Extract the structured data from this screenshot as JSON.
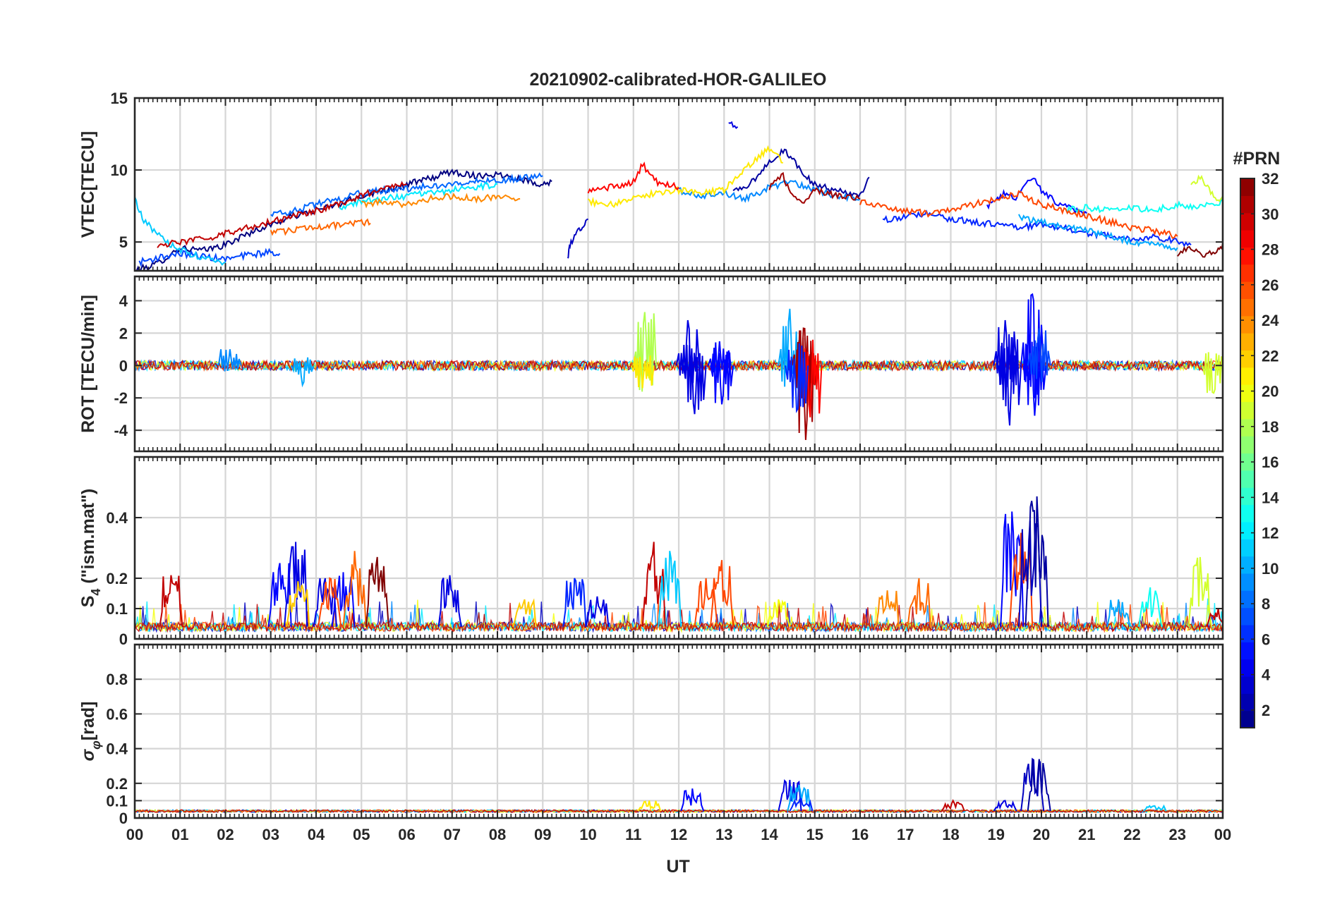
{
  "title": "20210902-calibrated-HOR-GALILEO",
  "xlabel": "UT",
  "x_ticks": [
    "00",
    "01",
    "02",
    "03",
    "04",
    "05",
    "06",
    "07",
    "08",
    "09",
    "10",
    "11",
    "12",
    "13",
    "14",
    "15",
    "16",
    "17",
    "18",
    "19",
    "20",
    "21",
    "22",
    "23",
    "00"
  ],
  "colorbar": {
    "title": "#PRN",
    "ticks": [
      "2",
      "4",
      "6",
      "8",
      "10",
      "12",
      "14",
      "16",
      "18",
      "20",
      "22",
      "24",
      "26",
      "28",
      "30",
      "32"
    ],
    "range": [
      1,
      32
    ],
    "colormap": "jet",
    "levels": 32
  },
  "chart_data": [
    {
      "type": "line",
      "panel": "vtec",
      "ylabel": "VTEC[TECU]",
      "ylim": [
        3,
        15
      ],
      "yticks": [
        "5",
        "10",
        "15"
      ],
      "xlim": [
        0,
        24
      ],
      "grid": true,
      "series": [
        {
          "prn": 1,
          "x": [
            0.0,
            0.5,
            1.0,
            1.5,
            2.0,
            2.5,
            3.0,
            3.5,
            4.0,
            4.5,
            5.0,
            5.5,
            6.0,
            6.5,
            7.0,
            7.5,
            8.0,
            8.5,
            9.0,
            9.2
          ],
          "y": [
            3.0,
            3.5,
            4.6,
            4.4,
            4.8,
            5.6,
            6.2,
            6.8,
            7.2,
            7.6,
            8.2,
            8.6,
            9.0,
            9.4,
            9.9,
            9.6,
            9.7,
            9.4,
            9.0,
            9.2
          ]
        },
        {
          "prn": 2,
          "x": [
            13.2,
            13.5,
            13.8,
            14.0,
            14.3,
            14.5,
            14.8,
            15.0,
            15.3,
            15.6,
            16.0,
            16.2
          ],
          "y": [
            8.5,
            8.8,
            9.8,
            10.5,
            11.4,
            10.8,
            9.6,
            9.0,
            8.7,
            8.5,
            8.3,
            9.5
          ]
        },
        {
          "prn": 3,
          "x": [
            9.55,
            9.6,
            9.7,
            9.8,
            9.9,
            10.0
          ],
          "y": [
            3.8,
            4.8,
            5.4,
            5.8,
            6.2,
            6.6
          ]
        },
        {
          "prn": 4,
          "x": [
            13.1,
            13.3
          ],
          "y": [
            13.2,
            13.0
          ]
        },
        {
          "prn": 5,
          "x": [
            18.8,
            19.0,
            19.2,
            19.4,
            19.6,
            19.8,
            20.0,
            20.3,
            20.6,
            21.0
          ],
          "y": [
            7.5,
            7.8,
            8.4,
            8.0,
            8.8,
            9.6,
            8.6,
            7.8,
            7.4,
            7.0
          ]
        },
        {
          "prn": 6,
          "x": [
            16.5,
            17.0,
            17.5,
            18.0,
            18.5,
            19.0,
            19.5,
            20.0,
            20.5,
            21.0,
            21.5,
            22.0,
            22.5,
            23.0,
            23.3
          ],
          "y": [
            6.5,
            6.8,
            7.0,
            6.6,
            6.4,
            6.2,
            6.0,
            6.2,
            6.0,
            5.6,
            5.4,
            5.2,
            5.4,
            5.0,
            4.8
          ]
        },
        {
          "prn": 7,
          "x": [
            0.1,
            0.5,
            1.0,
            1.5,
            2.0,
            2.5,
            3.0,
            3.2
          ],
          "y": [
            3.6,
            3.9,
            4.2,
            4.0,
            3.8,
            4.1,
            4.3,
            4.2
          ]
        },
        {
          "prn": 8,
          "x": [
            3.0,
            3.5,
            4.0,
            4.5,
            5.0,
            5.5,
            6.0,
            6.5,
            7.0,
            7.5,
            8.0,
            8.5,
            9.0
          ],
          "y": [
            6.8,
            7.2,
            7.6,
            8.0,
            8.4,
            8.6,
            8.7,
            8.9,
            9.0,
            9.2,
            9.3,
            9.4,
            9.6
          ]
        },
        {
          "prn": 9,
          "x": [
            12.0,
            12.5,
            13.0,
            13.5,
            14.0,
            14.5,
            15.0,
            15.5,
            16.0
          ],
          "y": [
            8.6,
            8.2,
            8.4,
            8.0,
            8.8,
            9.2,
            8.6,
            8.2,
            8.0
          ]
        },
        {
          "prn": 10,
          "x": [
            19.5,
            20.0,
            20.5,
            21.0,
            21.5,
            22.0,
            22.5,
            23.0
          ],
          "y": [
            6.8,
            6.4,
            6.0,
            5.8,
            5.4,
            5.0,
            4.8,
            4.6
          ]
        },
        {
          "prn": 11,
          "x": [
            0.0,
            0.2,
            0.5,
            0.8,
            1.2,
            1.6,
            2.0
          ],
          "y": [
            8.0,
            6.5,
            5.5,
            4.8,
            4.2,
            3.8,
            3.6
          ]
        },
        {
          "prn": 12,
          "x": [
            4.5,
            5.0,
            5.5,
            6.0,
            6.5,
            7.0,
            7.5,
            8.0
          ],
          "y": [
            7.4,
            7.8,
            8.0,
            8.2,
            8.4,
            8.6,
            8.8,
            9.0
          ]
        },
        {
          "prn": 13,
          "x": [
            20.5,
            21.0,
            21.5,
            22.0,
            22.5,
            23.0,
            23.5,
            24.0
          ],
          "y": [
            7.2,
            7.4,
            7.2,
            7.4,
            7.2,
            7.6,
            7.4,
            7.8
          ]
        },
        {
          "prn": 19,
          "x": [
            23.3,
            23.5,
            23.7,
            23.9,
            24.0
          ],
          "y": [
            8.8,
            9.6,
            8.6,
            7.8,
            8.2
          ]
        },
        {
          "prn": 21,
          "x": [
            10.0,
            10.5,
            11.0,
            11.5,
            12.0,
            12.5,
            13.0,
            13.5,
            13.8,
            14.0,
            14.3
          ],
          "y": [
            7.8,
            7.6,
            8.0,
            8.4,
            8.6,
            8.4,
            8.6,
            10.2,
            11.0,
            11.5,
            10.5
          ]
        },
        {
          "prn": 24,
          "x": [
            5.0,
            5.5,
            6.0,
            6.5,
            7.0,
            7.5,
            8.0,
            8.5
          ],
          "y": [
            7.6,
            7.8,
            7.6,
            8.0,
            8.2,
            8.0,
            8.1,
            8.0
          ]
        },
        {
          "prn": 25,
          "x": [
            3.0,
            3.5,
            4.0,
            4.5,
            5.0,
            5.2
          ],
          "y": [
            5.6,
            5.8,
            6.0,
            6.2,
            6.4,
            6.3
          ]
        },
        {
          "prn": 26,
          "x": [
            16.0,
            16.5,
            17.0,
            17.5,
            18.0,
            18.5,
            19.0,
            19.5,
            20.0,
            20.5,
            21.0,
            21.5,
            22.0,
            22.5,
            23.0
          ],
          "y": [
            7.8,
            7.4,
            7.2,
            7.0,
            7.2,
            7.6,
            8.0,
            8.4,
            7.6,
            7.2,
            6.8,
            6.4,
            6.0,
            5.8,
            5.4
          ]
        },
        {
          "prn": 28,
          "x": [
            10.0,
            10.5,
            11.0,
            11.2,
            11.5,
            12.0
          ],
          "y": [
            8.6,
            8.8,
            9.2,
            10.4,
            9.2,
            8.8
          ]
        },
        {
          "prn": 30,
          "x": [
            0.5,
            1.0,
            1.5,
            2.0,
            2.5,
            3.0,
            3.5,
            4.0,
            4.5,
            5.0,
            5.5,
            6.0
          ],
          "y": [
            4.8,
            5.0,
            5.2,
            5.6,
            6.0,
            6.4,
            6.8,
            7.2,
            7.6,
            8.2,
            8.8,
            9.0
          ]
        },
        {
          "prn": 31,
          "x": [
            14.0,
            14.3,
            14.5,
            14.8,
            15.0,
            15.5,
            16.0
          ],
          "y": [
            8.8,
            9.6,
            8.2,
            7.8,
            8.6,
            8.2,
            8.0
          ]
        },
        {
          "prn": 32,
          "x": [
            23.0,
            23.3,
            23.6,
            23.9,
            24.0
          ],
          "y": [
            4.2,
            4.6,
            4.0,
            4.4,
            4.9
          ]
        }
      ]
    },
    {
      "type": "line",
      "panel": "rot",
      "ylabel": "ROT [TECU/min]",
      "ylim": [
        -5.3,
        5.5
      ],
      "yticks": [
        "-4",
        "-2",
        "0",
        "2",
        "4"
      ],
      "xlim": [
        0,
        24
      ],
      "grid": true,
      "baseline": 0,
      "noise_amplitude": 0.3,
      "spikes": [
        {
          "prn": 9,
          "x": 2.1,
          "y": 1.0
        },
        {
          "prn": 10,
          "x": 3.7,
          "y": -1.2
        },
        {
          "prn": 18,
          "x": 11.25,
          "y": 3.3
        },
        {
          "prn": 21,
          "x": 11.2,
          "y": -1.4
        },
        {
          "prn": 4,
          "x": 12.2,
          "y": 2.8
        },
        {
          "prn": 4,
          "x": 12.35,
          "y": -3.0
        },
        {
          "prn": 5,
          "x": 12.9,
          "y": 1.5
        },
        {
          "prn": 5,
          "x": 12.95,
          "y": -2.4
        },
        {
          "prn": 10,
          "x": 14.45,
          "y": 3.5
        },
        {
          "prn": 31,
          "x": 14.75,
          "y": 2.3
        },
        {
          "prn": 31,
          "x": 14.8,
          "y": -4.6
        },
        {
          "prn": 28,
          "x": 14.9,
          "y": -3.2
        },
        {
          "prn": 6,
          "x": 14.6,
          "y": -2.8
        },
        {
          "prn": 4,
          "x": 19.2,
          "y": 2.8
        },
        {
          "prn": 4,
          "x": 19.3,
          "y": -3.7
        },
        {
          "prn": 5,
          "x": 19.8,
          "y": 4.4
        },
        {
          "prn": 5,
          "x": 19.85,
          "y": -3.1
        },
        {
          "prn": 7,
          "x": 19.95,
          "y": 2.3
        },
        {
          "prn": 19,
          "x": 23.8,
          "y": -1.7
        }
      ]
    },
    {
      "type": "line",
      "panel": "s4",
      "ylabel": "S4 (\"ism.mat\")",
      "ylabel_parts": {
        "symbol": "S",
        "subscript": "4",
        "rest": " (\"ism.mat\")"
      },
      "ylim": [
        0,
        0.6
      ],
      "yticks": [
        "0",
        "0.1",
        "0.2",
        "0.4"
      ],
      "ytick_values": [
        0,
        0.1,
        0.2,
        0.4
      ],
      "xlim": [
        0,
        24
      ],
      "grid": true,
      "baseline": 0.04,
      "spikes": [
        {
          "prn": 30,
          "x": 0.8,
          "y": 0.21
        },
        {
          "prn": 5,
          "x": 3.2,
          "y": 0.25
        },
        {
          "prn": 4,
          "x": 3.55,
          "y": 0.32
        },
        {
          "prn": 22,
          "x": 3.6,
          "y": 0.19
        },
        {
          "prn": 4,
          "x": 4.2,
          "y": 0.2
        },
        {
          "prn": 5,
          "x": 4.6,
          "y": 0.22
        },
        {
          "prn": 25,
          "x": 4.85,
          "y": 0.29
        },
        {
          "prn": 32,
          "x": 5.35,
          "y": 0.27
        },
        {
          "prn": 26,
          "x": 4.3,
          "y": 0.2
        },
        {
          "prn": 4,
          "x": 6.95,
          "y": 0.21
        },
        {
          "prn": 22,
          "x": 8.6,
          "y": 0.13
        },
        {
          "prn": 6,
          "x": 9.7,
          "y": 0.2
        },
        {
          "prn": 4,
          "x": 10.2,
          "y": 0.14
        },
        {
          "prn": 30,
          "x": 11.45,
          "y": 0.32
        },
        {
          "prn": 11,
          "x": 11.8,
          "y": 0.29
        },
        {
          "prn": 26,
          "x": 12.6,
          "y": 0.2
        },
        {
          "prn": 26,
          "x": 12.95,
          "y": 0.26
        },
        {
          "prn": 20,
          "x": 14.2,
          "y": 0.13
        },
        {
          "prn": 24,
          "x": 16.6,
          "y": 0.16
        },
        {
          "prn": 25,
          "x": 17.3,
          "y": 0.2
        },
        {
          "prn": 5,
          "x": 19.35,
          "y": 0.42
        },
        {
          "prn": 26,
          "x": 19.55,
          "y": 0.35
        },
        {
          "prn": 3,
          "x": 19.75,
          "y": 0.39
        },
        {
          "prn": 2,
          "x": 19.9,
          "y": 0.47
        },
        {
          "prn": 10,
          "x": 21.7,
          "y": 0.13
        },
        {
          "prn": 13,
          "x": 22.4,
          "y": 0.17
        },
        {
          "prn": 19,
          "x": 23.5,
          "y": 0.27
        },
        {
          "prn": 30,
          "x": 23.9,
          "y": 0.1
        }
      ]
    },
    {
      "type": "line",
      "panel": "sigma_phi",
      "ylabel": "σφ[rad]",
      "ylabel_parts": {
        "symbol": "σ",
        "subscript": "φ",
        "rest": "[rad]"
      },
      "ylim": [
        0,
        1.0
      ],
      "yticks": [
        "0",
        "0.1",
        "0.2",
        "0.4",
        "0.6",
        "0.8"
      ],
      "ytick_values": [
        0,
        0.1,
        0.2,
        0.4,
        0.6,
        0.8
      ],
      "xlim": [
        0,
        24
      ],
      "grid": true,
      "baseline": 0.04,
      "spikes": [
        {
          "prn": 5,
          "x": 12.3,
          "y": 0.17
        },
        {
          "prn": 4,
          "x": 14.45,
          "y": 0.22
        },
        {
          "prn": 10,
          "x": 14.65,
          "y": 0.19
        },
        {
          "prn": 6,
          "x": 14.7,
          "y": 0.11
        },
        {
          "prn": 21,
          "x": 11.35,
          "y": 0.1
        },
        {
          "prn": 30,
          "x": 18.05,
          "y": 0.1
        },
        {
          "prn": 4,
          "x": 19.2,
          "y": 0.1
        },
        {
          "prn": 3,
          "x": 19.8,
          "y": 0.34
        },
        {
          "prn": 2,
          "x": 19.95,
          "y": 0.34
        },
        {
          "prn": 11,
          "x": 22.5,
          "y": 0.07
        }
      ]
    }
  ]
}
